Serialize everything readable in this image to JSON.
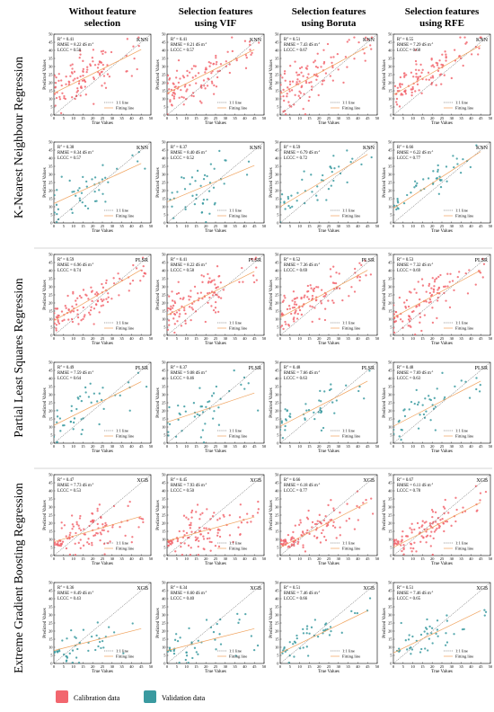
{
  "columns": [
    "Without feature selection",
    "Selection features using VIF",
    "Selection features using Boruta",
    "Selection features using RFE"
  ],
  "column_lines": [
    [
      "Without feature",
      "selection"
    ],
    [
      "Selection features",
      "using VIF"
    ],
    [
      "Selection features",
      "using Boruta"
    ],
    [
      "Selection features",
      "using RFE"
    ]
  ],
  "row_groups": [
    "K-Nearest Neighbour Regression",
    "Partial Least Squares Regression",
    "Extreme Gradient Boosting Regression"
  ],
  "legend": {
    "calibration": "Calibration data",
    "validation": "Validation data"
  },
  "colors": {
    "calibration": "#f2666e",
    "validation": "#3a9aa0",
    "fit": "#f0a25c",
    "identity": "#444444",
    "separator": "#aaaaaa"
  },
  "chart_data": {
    "type": "scatter",
    "x_label": "True Values",
    "y_label": "Predicted Values",
    "xlim": [
      0,
      50
    ],
    "ylim": [
      0,
      50
    ],
    "ticks": [
      "0",
      "5",
      "10",
      "15",
      "20",
      "25",
      "30",
      "35",
      "40",
      "45",
      "50"
    ],
    "line_labels": {
      "identity": "1:1 line",
      "fit": "Fitting line"
    },
    "stat_labels": {
      "r2": "R",
      "rmse": "RMSE =",
      "lccc": "LCCC =",
      "unit": "dS m"
    },
    "panels": [
      {
        "model": "KNN",
        "set": "calibration",
        "r2": "0.41",
        "rmse": "8.22",
        "lccc": "0.58",
        "fit": [
          0.6,
          13.5
        ]
      },
      {
        "model": "KNN",
        "set": "calibration",
        "r2": "0.41",
        "rmse": "8.21",
        "lccc": "0.57",
        "fit": [
          0.6,
          13.5
        ]
      },
      {
        "model": "KNN",
        "set": "calibration",
        "r2": "0.51",
        "rmse": "7.43",
        "lccc": "0.67",
        "fit": [
          0.65,
          13.0
        ]
      },
      {
        "model": "KNN",
        "set": "calibration",
        "r2": "0.55",
        "rmse": "7.29",
        "lccc": "0.68",
        "fit": [
          0.68,
          12.5
        ]
      },
      {
        "model": "KNN",
        "set": "validation",
        "r2": "0.38",
        "rmse": "8.34",
        "lccc": "0.57",
        "fit": [
          0.55,
          12.0
        ]
      },
      {
        "model": "KNN",
        "set": "validation",
        "r2": "0.37",
        "rmse": "8.40",
        "lccc": "0.52",
        "fit": [
          0.5,
          13.0
        ]
      },
      {
        "model": "KNN",
        "set": "validation",
        "r2": "0.59",
        "rmse": "6.79",
        "lccc": "0.72",
        "fit": [
          0.72,
          10.0
        ]
      },
      {
        "model": "KNN",
        "set": "validation",
        "r2": "0.66",
        "rmse": "6.22",
        "lccc": "0.77",
        "fit": [
          0.78,
          9.0
        ]
      },
      {
        "model": "PLSR",
        "set": "calibration",
        "r2": "0.59",
        "rmse": "6.96",
        "lccc": "0.74",
        "fit": [
          0.7,
          9.0
        ]
      },
      {
        "model": "PLSR",
        "set": "calibration",
        "r2": "0.41",
        "rmse": "8.22",
        "lccc": "0.58",
        "fit": [
          0.6,
          12.5
        ]
      },
      {
        "model": "PLSR",
        "set": "calibration",
        "r2": "0.52",
        "rmse": "7.36",
        "lccc": "0.69",
        "fit": [
          0.65,
          11.0
        ]
      },
      {
        "model": "PLSR",
        "set": "calibration",
        "r2": "0.53",
        "rmse": "7.32",
        "lccc": "0.69",
        "fit": [
          0.65,
          11.0
        ]
      },
      {
        "model": "PLSR",
        "set": "validation",
        "r2": "0.49",
        "rmse": "7.59",
        "lccc": "0.64",
        "fit": [
          0.6,
          11.0
        ]
      },
      {
        "model": "PLSR",
        "set": "validation",
        "r2": "0.37",
        "rmse": "9.08",
        "lccc": "0.46",
        "fit": [
          0.4,
          13.0
        ]
      },
      {
        "model": "PLSR",
        "set": "validation",
        "r2": "0.48",
        "rmse": "7.66",
        "lccc": "0.63",
        "fit": [
          0.62,
          10.5
        ]
      },
      {
        "model": "PLSR",
        "set": "validation",
        "r2": "0.48",
        "rmse": "7.69",
        "lccc": "0.63",
        "fit": [
          0.62,
          10.5
        ]
      },
      {
        "model": "XGB",
        "set": "calibration",
        "r2": "0.47",
        "rmse": "7.73",
        "lccc": "0.53",
        "fit": [
          0.35,
          8.5
        ]
      },
      {
        "model": "XGB",
        "set": "calibration",
        "r2": "0.45",
        "rmse": "7.93",
        "lccc": "0.50",
        "fit": [
          0.33,
          9.0
        ]
      },
      {
        "model": "XGB",
        "set": "calibration",
        "r2": "0.66",
        "rmse": "6.18",
        "lccc": "0.77",
        "fit": [
          0.62,
          5.0
        ]
      },
      {
        "model": "XGB",
        "set": "calibration",
        "r2": "0.67",
        "rmse": "6.11",
        "lccc": "0.78",
        "fit": [
          0.62,
          5.0
        ]
      },
      {
        "model": "XGB",
        "set": "validation",
        "r2": "0.36",
        "rmse": "8.49",
        "lccc": "0.43",
        "fit": [
          0.3,
          8.0
        ]
      },
      {
        "model": "XGB",
        "set": "validation",
        "r2": "0.34",
        "rmse": "8.60",
        "lccc": "0.40",
        "fit": [
          0.3,
          8.0
        ]
      },
      {
        "model": "XGB",
        "set": "validation",
        "r2": "0.51",
        "rmse": "7.46",
        "lccc": "0.66",
        "fit": [
          0.58,
          6.5
        ]
      },
      {
        "model": "XGB",
        "set": "validation",
        "r2": "0.51",
        "rmse": "7.46",
        "lccc": "0.65",
        "fit": [
          0.58,
          6.5
        ]
      }
    ]
  }
}
